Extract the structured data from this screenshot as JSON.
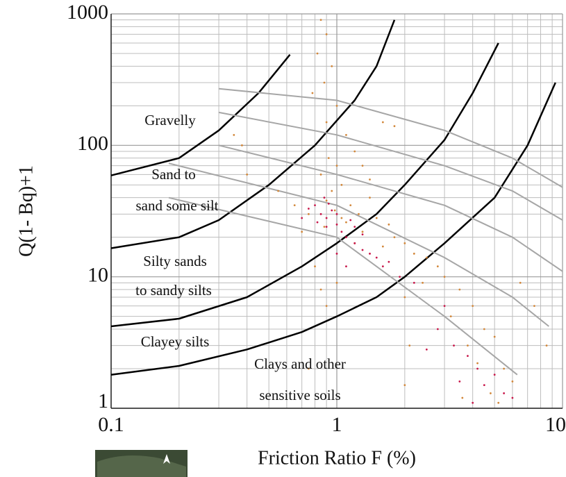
{
  "chart_data": {
    "type": "scatter",
    "xlabel": "Friction Ratio F (%)",
    "ylabel": "Q(1- Bq)+1",
    "xscale": "log",
    "yscale": "log",
    "xlim": [
      0.1,
      10
    ],
    "ylim": [
      1,
      1000
    ],
    "xticks": [
      0.1,
      1,
      10
    ],
    "yticks": [
      1,
      10,
      100,
      1000
    ],
    "xminorticks": [
      0.2,
      0.3,
      0.4,
      0.5,
      0.6,
      0.7,
      0.8,
      0.9,
      2,
      3,
      4,
      5,
      6,
      7,
      8,
      9
    ],
    "yminorticks": [
      2,
      3,
      4,
      5,
      6,
      7,
      8,
      9,
      20,
      30,
      40,
      50,
      60,
      70,
      80,
      90,
      200,
      300,
      400,
      500,
      600,
      700,
      800,
      900
    ],
    "grid": true,
    "series": [
      {
        "color": "#d2873a",
        "x": [
          0.85,
          0.9,
          0.82,
          0.95,
          0.88,
          1.0,
          0.9,
          1.1,
          0.78,
          0.92,
          0.85,
          1.2,
          1.3,
          1.05,
          0.95,
          1.4,
          1.15,
          0.9,
          1.25,
          1.5,
          1.7,
          1.3,
          1.1,
          1.8,
          2.0,
          2.2,
          1.6,
          2.5,
          2.8,
          3.0,
          2.4,
          3.5,
          2.0,
          4.0,
          3.2,
          4.5,
          5,
          3.8,
          4.2,
          5.5,
          6,
          4.8,
          3.6,
          5.2,
          2.1,
          2.0,
          0.75,
          0.7,
          0.65,
          0.55,
          0.4,
          0.38,
          0.35,
          1.6,
          1.8,
          0.8,
          0.85,
          0.9,
          1.0,
          1.2,
          6.5,
          7.5,
          8.5,
          1.4,
          1.0,
          0.98,
          1.05,
          0.88,
          0.75
        ],
        "values": [
          900,
          700,
          500,
          400,
          300,
          200,
          150,
          120,
          250,
          80,
          60,
          90,
          70,
          50,
          45,
          40,
          35,
          38,
          30,
          28,
          25,
          22,
          26,
          20,
          18,
          15,
          17,
          14,
          12,
          10,
          9,
          8,
          7,
          6,
          5,
          4,
          3.5,
          3,
          2.2,
          2,
          1.6,
          1.3,
          1.2,
          1.1,
          3,
          1.5,
          30,
          22,
          35,
          45,
          60,
          100,
          120,
          150,
          140,
          12,
          8,
          6,
          9,
          18,
          9,
          6,
          3,
          55,
          70,
          32,
          28,
          24,
          2
        ]
      },
      {
        "color": "#c8174a",
        "x": [
          0.8,
          0.85,
          0.9,
          0.95,
          1.0,
          1.05,
          1.1,
          0.9,
          1.2,
          1.3,
          1.4,
          1.0,
          1.15,
          0.75,
          0.82,
          1.5,
          1.7,
          1.3,
          1.2,
          0.88,
          0.92,
          1.6,
          1.9,
          2.2,
          3.0,
          3.3,
          3.8,
          4.2,
          4.5,
          5,
          5.5,
          4,
          3.5,
          6,
          2.5,
          2.8,
          1.1,
          1.0,
          0.7
        ],
        "values": [
          35,
          30,
          28,
          32,
          25,
          22,
          20,
          24,
          18,
          16,
          15,
          30,
          27,
          33,
          26,
          14,
          13,
          21,
          24,
          40,
          36,
          12,
          10,
          9,
          6,
          3,
          2.5,
          2,
          1.5,
          1.8,
          1.3,
          1.1,
          1.6,
          1.2,
          2.8,
          4,
          12,
          15,
          28
        ]
      }
    ],
    "curves": [
      {
        "color": "#000000",
        "width": 2.5,
        "x": [
          0.1,
          0.2,
          0.3,
          0.45,
          0.62
        ],
        "values": [
          59,
          80,
          130,
          250,
          490
        ]
      },
      {
        "color": "#000000",
        "width": 2.5,
        "x": [
          0.1,
          0.2,
          0.3,
          0.5,
          0.8,
          1.2,
          1.5,
          1.8
        ],
        "values": [
          16.5,
          20,
          27,
          50,
          100,
          220,
          400,
          900
        ]
      },
      {
        "color": "#000000",
        "width": 2.5,
        "x": [
          0.1,
          0.2,
          0.4,
          0.7,
          1,
          1.5,
          2,
          3,
          4,
          5.2
        ],
        "values": [
          4.2,
          4.8,
          7,
          12,
          18,
          30,
          50,
          110,
          250,
          600
        ]
      },
      {
        "color": "#000000",
        "width": 2.5,
        "x": [
          0.1,
          0.2,
          0.4,
          0.7,
          1,
          1.5,
          2,
          3,
          5,
          7,
          9.3
        ],
        "values": [
          1.8,
          2.1,
          2.8,
          3.8,
          5,
          7,
          10,
          18,
          40,
          100,
          300
        ]
      },
      {
        "color": "#a6a6a6",
        "width": 2,
        "x": [
          0.3,
          1,
          3,
          6,
          10
        ],
        "values": [
          270,
          220,
          130,
          80,
          48
        ]
      },
      {
        "color": "#a6a6a6",
        "width": 2,
        "x": [
          0.3,
          1,
          3,
          6,
          10
        ],
        "values": [
          178,
          120,
          70,
          45,
          27
        ]
      },
      {
        "color": "#a6a6a6",
        "width": 2,
        "x": [
          0.3,
          1,
          3,
          6,
          10
        ],
        "values": [
          100,
          60,
          35,
          20,
          11
        ]
      },
      {
        "color": "#a6a6a6",
        "width": 2,
        "x": [
          0.18,
          1,
          3,
          6,
          8.7
        ],
        "values": [
          73,
          35,
          14,
          7,
          4.2
        ]
      },
      {
        "color": "#a6a6a6",
        "width": 2,
        "x": [
          0.18,
          1,
          3,
          6.3
        ],
        "values": [
          40,
          20,
          5,
          1.8
        ]
      }
    ],
    "annotations": [
      "Gravelly",
      "Sand to",
      "sand some silt",
      "Silty sands",
      "to sandy silts",
      "Clayey silts",
      "Clays and other",
      "sensitive soils"
    ]
  }
}
